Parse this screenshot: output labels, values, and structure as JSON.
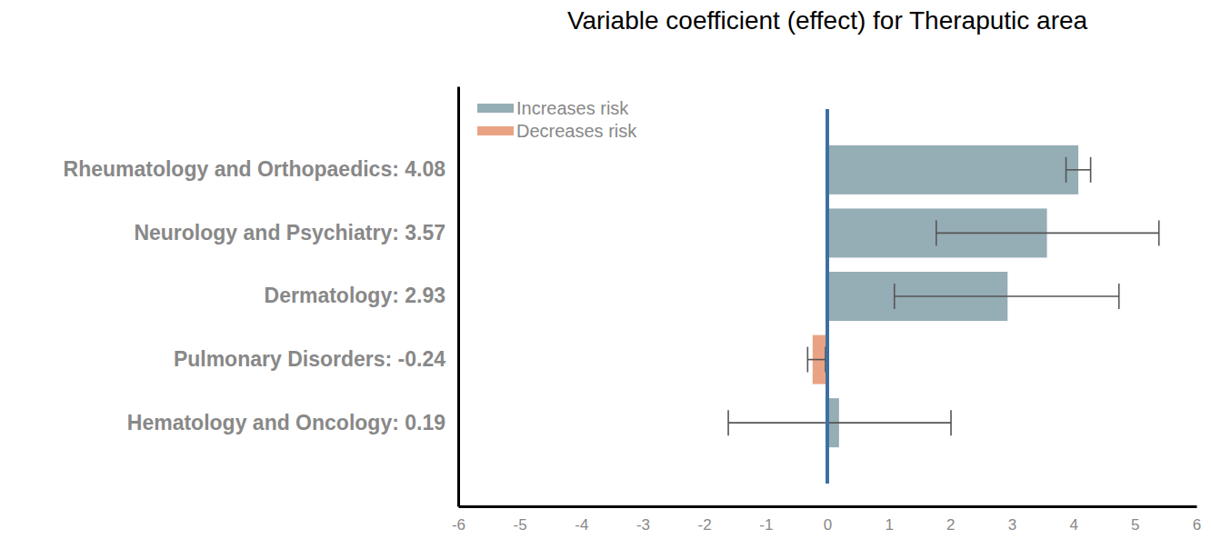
{
  "chart_data": {
    "type": "bar",
    "orientation": "horizontal",
    "title": "Variable coefficient (effect) for Theraputic area",
    "categories": [
      "Rheumatology and Orthopaedics: 4.08",
      "Neurology and Psychiatry: 3.57",
      "Dermatology: 2.93",
      "Pulmonary Disorders: -0.24",
      "Hematology and Oncology: 0.19"
    ],
    "series": [
      {
        "name": "Increases risk",
        "color": "#95adb5",
        "values": [
          4.08,
          3.57,
          2.93,
          null,
          0.19
        ]
      },
      {
        "name": "Decreases risk",
        "color": "#e9a384",
        "values": [
          null,
          null,
          null,
          -0.24,
          null
        ]
      }
    ],
    "error_low": [
      3.88,
      1.77,
      1.09,
      -0.32,
      -1.61
    ],
    "error_high": [
      4.28,
      5.39,
      4.74,
      -0.03,
      2.01
    ],
    "xlim": [
      -6,
      6
    ],
    "xticks": [
      -6,
      -5,
      -4,
      -3,
      -2,
      -1,
      0,
      1,
      2,
      3,
      4,
      5,
      6
    ],
    "legend": "upper left",
    "grid": false
  }
}
